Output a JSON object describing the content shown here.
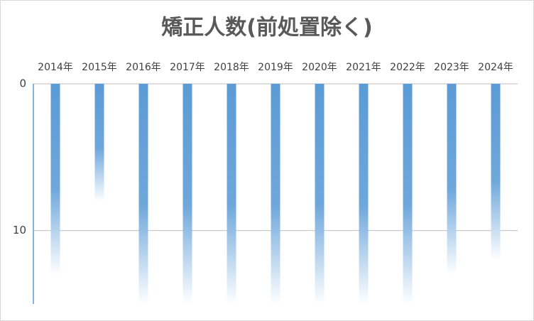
{
  "chart_data": {
    "type": "bar",
    "title": "矯正人数(前処置除く)",
    "categories": [
      "2014年",
      "2015年",
      "2016年",
      "2017年",
      "2018年",
      "2019年",
      "2020年",
      "2021年",
      "2022年",
      "2023年",
      "2024年"
    ],
    "values": [
      13,
      8,
      15,
      15,
      15,
      15,
      15,
      15,
      15,
      13,
      12
    ],
    "color": "#5b9bd5",
    "ylim": [
      0,
      15
    ],
    "yticks": [
      0,
      10
    ],
    "grid": true,
    "y_inverted": true
  }
}
